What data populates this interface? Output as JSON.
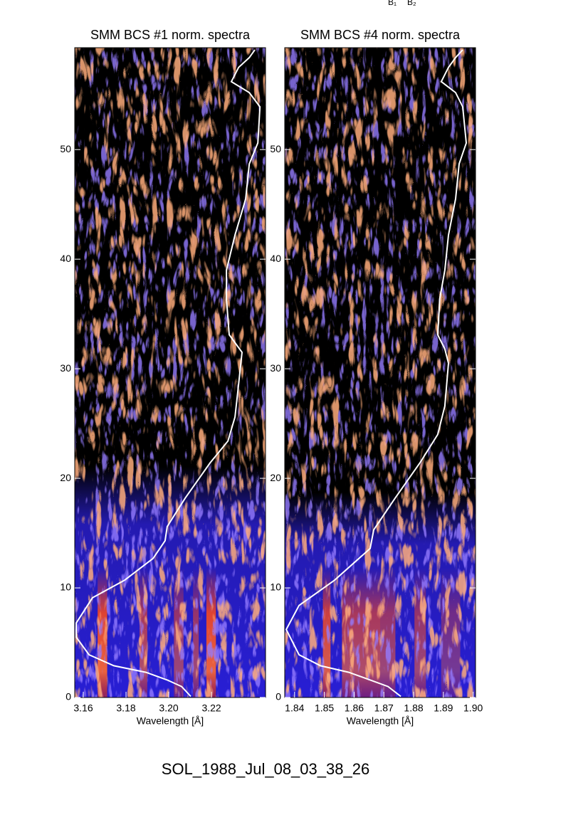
{
  "top_labels": [
    "B₁",
    "B₂"
  ],
  "chart_data": [
    {
      "type": "line",
      "title": "SMM BCS #1 norm. spectra",
      "x_label": "Wavelength [Å]",
      "xlim": [
        3.156,
        3.2453
      ],
      "xticks": [
        3.16,
        3.18,
        {
          "value": 3.2,
          "label": "3.20"
        },
        3.22
      ],
      "ylim": [
        0,
        59.3
      ],
      "yticks": [
        0,
        10,
        20,
        30,
        40,
        50
      ],
      "color": "#ffffff",
      "x": [
        3.2103,
        3.206,
        3.1993,
        3.1893,
        3.1743,
        3.1627,
        3.1567,
        3.1567,
        3.1643,
        3.1793,
        3.1927,
        3.1983,
        3.1993,
        3.2077,
        3.2193,
        3.2277,
        3.231,
        3.2327,
        3.2343,
        3.2283,
        3.227,
        3.227,
        3.231,
        3.236,
        3.2377,
        3.2417,
        3.2427,
        3.2377,
        3.2293,
        3.2327,
        3.2377,
        3.2403
      ],
      "values": [
        0.1,
        1.0,
        1.6,
        2.3,
        2.9,
        3.9,
        5.5,
        6.8,
        9.1,
        10.7,
        12.7,
        14.3,
        15.6,
        18.2,
        21.4,
        23.4,
        25.6,
        28.6,
        31.5,
        33.1,
        36.4,
        39.0,
        42.2,
        45.5,
        48.7,
        50.6,
        53.9,
        55.2,
        56.2,
        57.5,
        58.4,
        59.1
      ]
    },
    {
      "type": "line",
      "title": "SMM BCS #4 norm. spectra",
      "x_label": "Wavelength [Å]",
      "xlim": [
        1.8367,
        1.9008
      ],
      "xticks": [
        1.84,
        1.85,
        1.86,
        1.87,
        1.88,
        1.89,
        {
          "value": 1.9,
          "label": "1.90"
        }
      ],
      "ylim": [
        0,
        59.3
      ],
      "yticks": [
        0,
        10,
        20,
        30,
        40,
        50
      ],
      "color": "#ffffff",
      "x": [
        1.8757,
        1.8714,
        1.8654,
        1.8582,
        1.8487,
        1.8415,
        1.8372,
        1.8415,
        1.8534,
        1.8654,
        1.8666,
        1.8738,
        1.8821,
        1.8881,
        1.8905,
        1.8917,
        1.8905,
        1.8881,
        1.8888,
        1.8905,
        1.8917,
        1.8941,
        1.8953,
        1.8977,
        1.8965,
        1.8941,
        1.8893,
        1.8917,
        1.8941,
        1.8965
      ],
      "values": [
        0.1,
        1.0,
        1.6,
        2.3,
        2.9,
        3.9,
        6.2,
        8.4,
        10.7,
        13.6,
        15.3,
        18.2,
        21.4,
        24.0,
        26.6,
        30.5,
        31.8,
        33.1,
        36.4,
        39.0,
        42.2,
        45.5,
        48.7,
        50.6,
        53.9,
        55.2,
        56.2,
        57.5,
        58.4,
        59.1
      ]
    }
  ],
  "footer": "SOL_1988_Jul_08_03_38_26"
}
